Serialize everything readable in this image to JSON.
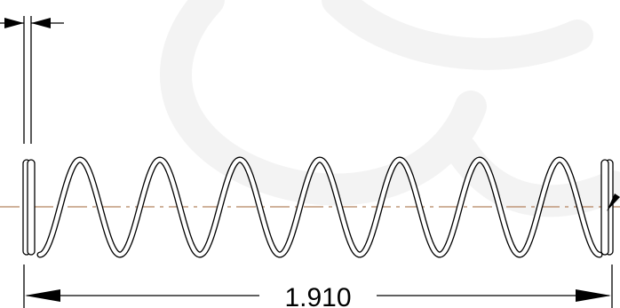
{
  "dimensions": {
    "overall_length": "1.910"
  },
  "colors": {
    "line": "#000000",
    "centerline": "#b5835f",
    "watermark": "#f3f3f3"
  },
  "spring": {
    "active_coils": 7,
    "closed_end_turns": 2
  }
}
